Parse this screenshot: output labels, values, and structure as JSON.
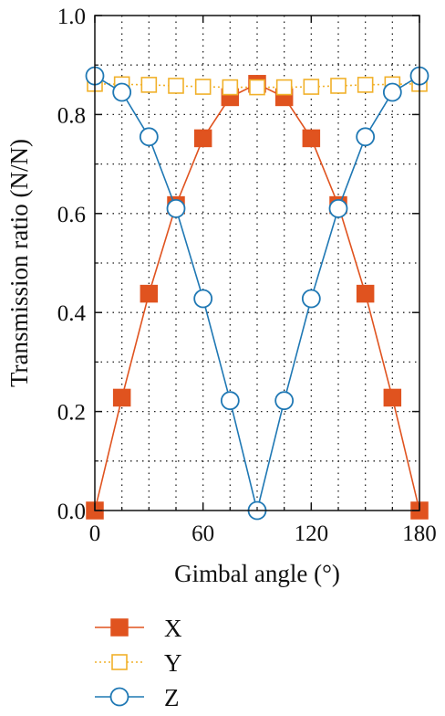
{
  "chart_data": {
    "type": "line",
    "title": "",
    "xlabel": "Gimbal angle (°)",
    "ylabel": "Transmission ratio (N/N)",
    "xlim": [
      0,
      180
    ],
    "ylim": [
      0.0,
      1.0
    ],
    "xticks": [
      0,
      60,
      120,
      180
    ],
    "xtick_labels": [
      "0",
      "60",
      "120",
      "180"
    ],
    "yticks": [
      0.0,
      0.2,
      0.4,
      0.6,
      0.8,
      1.0
    ],
    "ytick_labels": [
      "0.0",
      "0.2",
      "0.4",
      "0.6",
      "0.8",
      "1.0"
    ],
    "minor_xticks": [
      15,
      30,
      45,
      75,
      90,
      105,
      135,
      150,
      165
    ],
    "minor_yticks": [
      0.1,
      0.3,
      0.5,
      0.7,
      0.9
    ],
    "grid": "dotted, at major and minor ticks",
    "legend_position": "below plot",
    "x": [
      0,
      15,
      30,
      45,
      60,
      75,
      90,
      105,
      120,
      135,
      150,
      165,
      180
    ],
    "series": [
      {
        "name": "X",
        "color": "#e0531f",
        "marker": "filled-square",
        "values": [
          0.0,
          0.228,
          0.438,
          0.617,
          0.752,
          0.835,
          0.862,
          0.835,
          0.752,
          0.617,
          0.438,
          0.228,
          0.0
        ]
      },
      {
        "name": "Y",
        "color": "#f1b12a",
        "marker": "open-square",
        "line": "dotted",
        "values": [
          0.862,
          0.861,
          0.86,
          0.858,
          0.856,
          0.855,
          0.855,
          0.855,
          0.856,
          0.858,
          0.86,
          0.861,
          0.862
        ]
      },
      {
        "name": "Z",
        "color": "#1f78b4",
        "marker": "open-circle",
        "values": [
          0.878,
          0.845,
          0.755,
          0.61,
          0.428,
          0.222,
          0.0,
          0.222,
          0.428,
          0.61,
          0.755,
          0.845,
          0.878
        ]
      }
    ]
  }
}
